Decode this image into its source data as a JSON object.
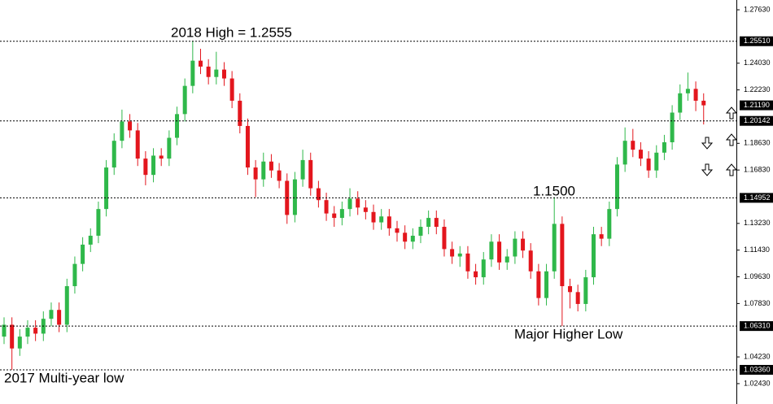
{
  "chart_data": {
    "type": "candlestick",
    "open": [
      1.056,
      1.064,
      1.048,
      1.056,
      1.062,
      1.058,
      1.068,
      1.074,
      1.064,
      1.09,
      1.105,
      1.118,
      1.124,
      1.142,
      1.17,
      1.188,
      1.201,
      1.195,
      1.176,
      1.165,
      1.178,
      1.176,
      1.19,
      1.206,
      1.225,
      1.242,
      1.238,
      1.231,
      1.236,
      1.23,
      1.215,
      1.198,
      1.17,
      1.162,
      1.174,
      1.168,
      1.161,
      1.138,
      1.162,
      1.175,
      1.156,
      1.148,
      1.139,
      1.136,
      1.142,
      1.149,
      1.143,
      1.14,
      1.133,
      1.137,
      1.129,
      1.126,
      1.12,
      1.124,
      1.13,
      1.136,
      1.13,
      1.115,
      1.11,
      1.112,
      1.1,
      1.096,
      1.108,
      1.12,
      1.106,
      1.11,
      1.122,
      1.114,
      1.1,
      1.082,
      1.1,
      1.132,
      1.09,
      1.086,
      1.078,
      1.096,
      1.125,
      1.122,
      1.142,
      1.172,
      1.188,
      1.182,
      1.176,
      1.168,
      1.18,
      1.187,
      1.207,
      1.22,
      1.223,
      1.215
    ],
    "high": [
      1.069,
      1.069,
      1.061,
      1.067,
      1.067,
      1.073,
      1.079,
      1.079,
      1.095,
      1.11,
      1.123,
      1.129,
      1.147,
      1.175,
      1.193,
      1.209,
      1.206,
      1.2,
      1.181,
      1.183,
      1.183,
      1.195,
      1.211,
      1.23,
      1.2555,
      1.25,
      1.243,
      1.248,
      1.241,
      1.235,
      1.22,
      1.203,
      1.175,
      1.18,
      1.179,
      1.173,
      1.166,
      1.167,
      1.182,
      1.18,
      1.161,
      1.153,
      1.144,
      1.147,
      1.156,
      1.154,
      1.148,
      1.145,
      1.142,
      1.142,
      1.134,
      1.131,
      1.129,
      1.135,
      1.141,
      1.141,
      1.135,
      1.12,
      1.117,
      1.117,
      1.105,
      1.113,
      1.125,
      1.125,
      1.115,
      1.127,
      1.127,
      1.119,
      1.105,
      1.105,
      1.15,
      1.137,
      1.095,
      1.091,
      1.101,
      1.13,
      1.13,
      1.147,
      1.177,
      1.197,
      1.196,
      1.187,
      1.181,
      1.185,
      1.192,
      1.212,
      1.226,
      1.234,
      1.228,
      1.22
    ],
    "low": [
      1.051,
      1.0336,
      1.043,
      1.051,
      1.053,
      1.053,
      1.063,
      1.059,
      1.059,
      1.085,
      1.1,
      1.113,
      1.119,
      1.137,
      1.165,
      1.183,
      1.19,
      1.171,
      1.158,
      1.16,
      1.171,
      1.171,
      1.185,
      1.201,
      1.22,
      1.233,
      1.226,
      1.226,
      1.225,
      1.21,
      1.193,
      1.165,
      1.15,
      1.157,
      1.163,
      1.156,
      1.132,
      1.133,
      1.157,
      1.151,
      1.143,
      1.134,
      1.13,
      1.131,
      1.137,
      1.138,
      1.135,
      1.128,
      1.128,
      1.124,
      1.12,
      1.115,
      1.115,
      1.119,
      1.125,
      1.125,
      1.11,
      1.105,
      1.103,
      1.095,
      1.091,
      1.091,
      1.103,
      1.101,
      1.101,
      1.105,
      1.109,
      1.095,
      1.077,
      1.077,
      1.095,
      1.0631,
      1.075,
      1.073,
      1.073,
      1.091,
      1.117,
      1.117,
      1.137,
      1.167,
      1.177,
      1.171,
      1.163,
      1.163,
      1.175,
      1.182,
      1.202,
      1.215,
      1.208,
      1.199
    ],
    "close": [
      1.064,
      1.048,
      1.056,
      1.062,
      1.058,
      1.068,
      1.074,
      1.064,
      1.09,
      1.105,
      1.118,
      1.124,
      1.142,
      1.17,
      1.188,
      1.201,
      1.195,
      1.176,
      1.165,
      1.178,
      1.176,
      1.19,
      1.206,
      1.225,
      1.242,
      1.238,
      1.231,
      1.236,
      1.23,
      1.215,
      1.198,
      1.17,
      1.162,
      1.174,
      1.168,
      1.161,
      1.138,
      1.162,
      1.175,
      1.156,
      1.148,
      1.139,
      1.136,
      1.142,
      1.149,
      1.143,
      1.14,
      1.133,
      1.137,
      1.129,
      1.126,
      1.12,
      1.124,
      1.13,
      1.136,
      1.13,
      1.115,
      1.11,
      1.112,
      1.1,
      1.096,
      1.108,
      1.12,
      1.106,
      1.11,
      1.122,
      1.114,
      1.1,
      1.082,
      1.1,
      1.132,
      1.09,
      1.086,
      1.078,
      1.096,
      1.125,
      1.122,
      1.142,
      1.172,
      1.188,
      1.182,
      1.176,
      1.168,
      1.18,
      1.187,
      1.207,
      1.22,
      1.223,
      1.215,
      1.2119
    ],
    "up_color": "#2fb84a",
    "down_color": "#e3161d",
    "ylim": [
      1.0144,
      1.2829
    ],
    "yticks": [
      {
        "value": 1.2763,
        "label": "1.27630"
      },
      {
        "value": 1.2403,
        "label": "1.24030"
      },
      {
        "value": 1.2223,
        "label": "1.22230"
      },
      {
        "value": 1.1863,
        "label": "1.18630"
      },
      {
        "value": 1.1683,
        "label": "1.16830"
      },
      {
        "value": 1.1323,
        "label": "1.13230"
      },
      {
        "value": 1.1143,
        "label": "1.11430"
      },
      {
        "value": 1.0963,
        "label": "1.09630"
      },
      {
        "value": 1.0783,
        "label": "1.07830"
      },
      {
        "value": 1.0423,
        "label": "1.04230"
      },
      {
        "value": 1.0243,
        "label": "1.02430"
      }
    ],
    "levels": [
      {
        "value": 1.2551,
        "label": "1.25510"
      },
      {
        "value": 1.20142,
        "label": "1.20142"
      },
      {
        "value": 1.14952,
        "label": "1.14952"
      },
      {
        "value": 1.0631,
        "label": "1.06310"
      },
      {
        "value": 1.0336,
        "label": "1.03360"
      }
    ],
    "current_price": {
      "value": 1.2119,
      "label": "1.21190"
    },
    "annotations": [
      "2018 High = 1.2555",
      "1.1500",
      "Major Higher Low",
      "2017 Multi-year low"
    ]
  }
}
